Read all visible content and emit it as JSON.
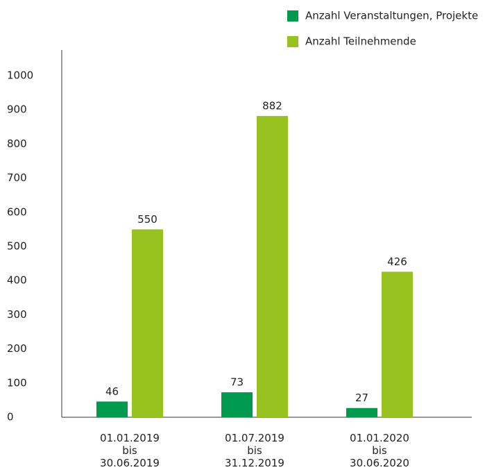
{
  "chart_data": {
    "type": "bar",
    "categories": [
      "01.01.2019\nbis\n30.06.2019",
      "01.07.2019\nbis\n31.12.2019",
      "01.01.2020\nbis\n30.06.2020"
    ],
    "series": [
      {
        "name": "Anzahl Veranstaltungen, Projekte",
        "color": "#009a4e",
        "values": [
          46,
          73,
          27
        ]
      },
      {
        "name": "Anzahl Teilnehmende",
        "color": "#97c21f",
        "values": [
          550,
          882,
          426
        ]
      }
    ],
    "ylim": [
      0,
      1000
    ],
    "yticks": [
      0,
      100,
      200,
      300,
      400,
      500,
      600,
      700,
      800,
      900,
      1000
    ],
    "grid": false,
    "legend": "top-right"
  }
}
